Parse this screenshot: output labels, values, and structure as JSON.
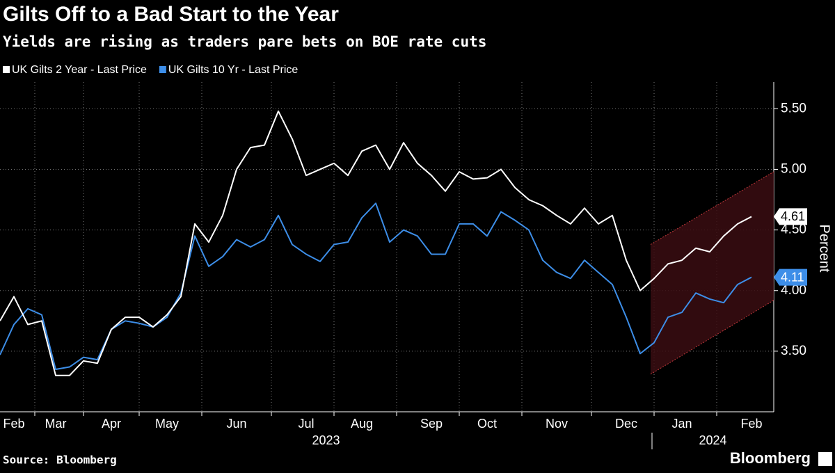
{
  "chart_data": {
    "type": "line",
    "title": "Gilts Off to a Bad Start to the Year",
    "subtitle": "Yields are rising as traders pare bets on BOE rate cuts",
    "categories": [
      null,
      "Feb",
      null,
      null,
      "Mar",
      null,
      null,
      null,
      "Apr",
      null,
      null,
      null,
      "May",
      null,
      null,
      null,
      null,
      "Jun",
      null,
      null,
      null,
      null,
      "Jul",
      null,
      null,
      null,
      "Aug",
      null,
      null,
      null,
      null,
      "Sep",
      null,
      null,
      null,
      "Oct",
      null,
      null,
      null,
      null,
      "Nov",
      null,
      null,
      null,
      null,
      "Dec",
      null,
      null,
      null,
      "Jan",
      null,
      null,
      null,
      null,
      "Feb"
    ],
    "series": [
      {
        "name": "UK Gilts 2 Year - Last Price",
        "color": "#ffffff",
        "values": [
          3.75,
          3.95,
          3.72,
          3.75,
          3.3,
          3.3,
          3.42,
          3.4,
          3.68,
          3.78,
          3.78,
          3.7,
          3.8,
          3.95,
          4.55,
          4.4,
          4.62,
          5.0,
          5.18,
          5.2,
          5.48,
          5.25,
          4.95,
          5.0,
          5.05,
          4.95,
          5.15,
          5.2,
          5.0,
          5.22,
          5.05,
          4.95,
          4.82,
          4.98,
          4.92,
          4.93,
          5.0,
          4.85,
          4.75,
          4.7,
          4.62,
          4.55,
          4.68,
          4.55,
          4.62,
          4.25,
          4.0,
          4.1,
          4.22,
          4.25,
          4.35,
          4.32,
          4.45,
          4.55,
          4.61
        ]
      },
      {
        "name": "UK Gilts 10 Yr - Last Price",
        "color": "#3d8ee8",
        "values": [
          3.47,
          3.72,
          3.85,
          3.8,
          3.35,
          3.37,
          3.45,
          3.43,
          3.68,
          3.75,
          3.73,
          3.7,
          3.78,
          3.98,
          4.45,
          4.2,
          4.28,
          4.42,
          4.36,
          4.42,
          4.62,
          4.38,
          4.3,
          4.24,
          4.38,
          4.4,
          4.6,
          4.72,
          4.4,
          4.5,
          4.45,
          4.3,
          4.3,
          4.55,
          4.55,
          4.45,
          4.65,
          4.58,
          4.5,
          4.25,
          4.15,
          4.1,
          4.25,
          4.15,
          4.05,
          3.78,
          3.48,
          3.57,
          3.78,
          3.82,
          3.98,
          3.93,
          3.9,
          4.05,
          4.11
        ]
      }
    ],
    "ylim": [
      3.0,
      5.72
    ],
    "yticks": [
      {
        "value": 3.5,
        "label": "3.50"
      },
      {
        "value": 4.0,
        "label": "4.00"
      },
      {
        "value": 4.5,
        "label": "4.50"
      },
      {
        "value": 5.0,
        "label": "5.00"
      },
      {
        "value": 5.5,
        "label": "5.50"
      }
    ],
    "y_label": "Percent",
    "grid": true,
    "years": [
      "2023",
      "2024"
    ],
    "channel": {
      "upper": [
        4.38,
        4.98
      ],
      "lower": [
        3.31,
        3.92
      ],
      "color": "#c0393b",
      "fill": "#3a0d12"
    },
    "source": "Source: Bloomberg",
    "logo": "Bloomberg"
  }
}
